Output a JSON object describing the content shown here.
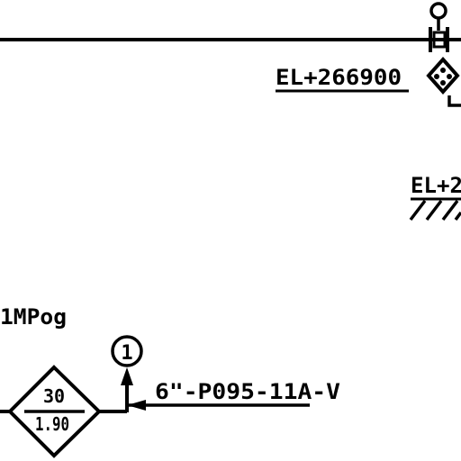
{
  "drawing": {
    "elevation_label_1": "EL+266900",
    "elevation_label_2": "EL+2",
    "pressure_label": "1MPog",
    "node_number": "1",
    "line_spec": "6\"-P095-11A-V",
    "diamond_top_value": "30",
    "diamond_bottom_value": "1.90"
  },
  "colors": {
    "ink": "#000000",
    "paper": "#ffffff"
  }
}
